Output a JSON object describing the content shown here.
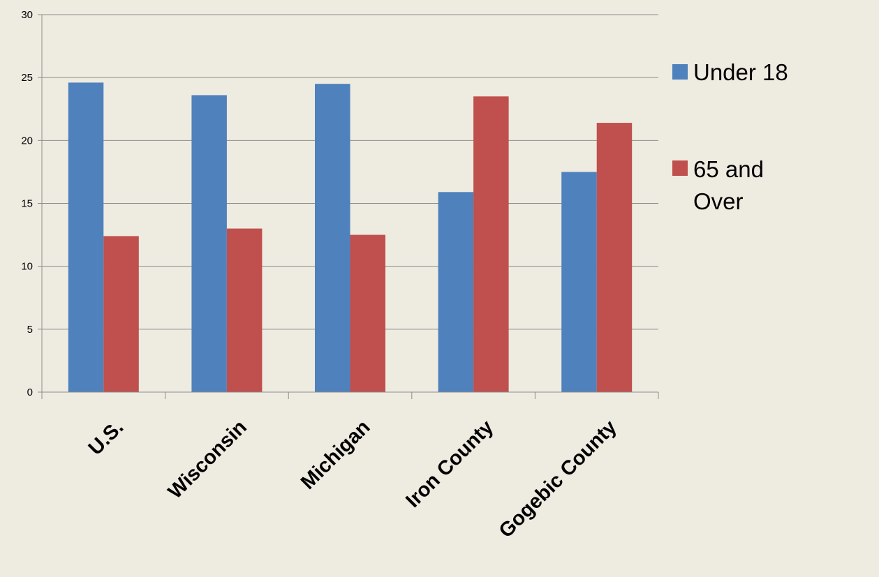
{
  "colors": {
    "background": "#EEEBE1",
    "grid": "#8C8C8C",
    "axis": "#8C8C8C"
  },
  "chart_data": {
    "type": "bar",
    "categories": [
      "U.S.",
      "Wisconsin",
      "Michigan",
      "Iron County",
      "Gogebic County"
    ],
    "series": [
      {
        "name": "Under 18",
        "color": "#4F81BD",
        "values": [
          24.6,
          23.6,
          24.5,
          15.9,
          17.5
        ]
      },
      {
        "name": "65 and Over",
        "color": "#C0504D",
        "values": [
          12.4,
          13.0,
          12.5,
          23.5,
          21.4
        ]
      }
    ],
    "yticks": [
      0,
      5,
      10,
      15,
      20,
      25,
      30
    ],
    "ylim": [
      0,
      30
    ],
    "grid": true,
    "legend_position": "right",
    "title": "",
    "xlabel": "",
    "ylabel": ""
  }
}
